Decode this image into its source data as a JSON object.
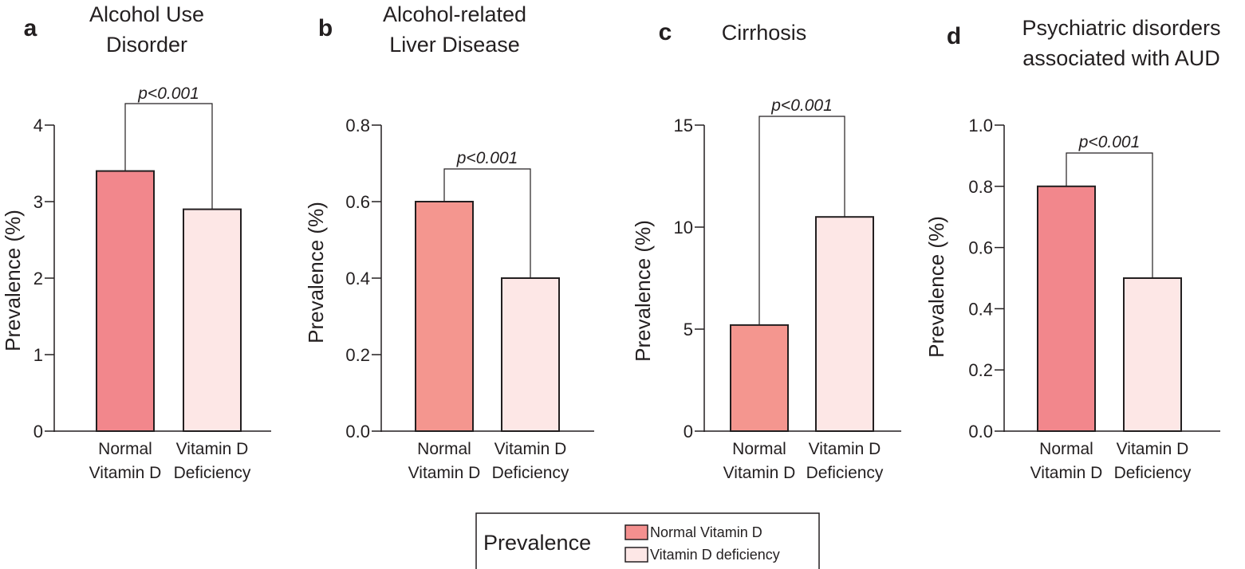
{
  "legend": {
    "title": "Prevalence",
    "items": [
      {
        "label": "Normal Vitamin D",
        "color": "#f4908f"
      },
      {
        "label": "Vitamin D deficiency",
        "color": "#fde7e6"
      }
    ]
  },
  "chart_data": [
    {
      "panel": "a",
      "type": "bar",
      "title": [
        "Alcohol Use",
        "Disorder"
      ],
      "ylabel": "Prevalence (%)",
      "ylim": [
        0,
        4
      ],
      "yticks": [
        "0",
        "1",
        "2",
        "3",
        "4"
      ],
      "categories": [
        [
          "Normal",
          "Vitamin D"
        ],
        [
          "Vitamin D",
          "Deficiency"
        ]
      ],
      "values": [
        3.4,
        2.9
      ],
      "colors": [
        "#f2878c",
        "#fde7e6"
      ],
      "significance": "p<0.001"
    },
    {
      "panel": "b",
      "type": "bar",
      "title": [
        "Alcohol-related",
        "Liver Disease"
      ],
      "ylabel": "Prevalence (%)",
      "ylim": [
        0,
        0.8
      ],
      "yticks": [
        "0.0",
        "0.2",
        "0.4",
        "0.6",
        "0.8"
      ],
      "categories": [
        [
          "Normal",
          "Vitamin D"
        ],
        [
          "Vitamin D",
          "Deficiency"
        ]
      ],
      "values": [
        0.6,
        0.4
      ],
      "colors": [
        "#f4968f",
        "#fde7e6"
      ],
      "significance": "p<0.001"
    },
    {
      "panel": "c",
      "type": "bar",
      "title": [
        "Cirrhosis"
      ],
      "ylabel": "Prevalence (%)",
      "ylim": [
        0,
        15
      ],
      "yticks": [
        "0",
        "5",
        "10",
        "15"
      ],
      "categories": [
        [
          "Normal",
          "Vitamin D"
        ],
        [
          "Vitamin D",
          "Deficiency"
        ]
      ],
      "values": [
        5.2,
        10.5
      ],
      "colors": [
        "#f4968f",
        "#fde7e6"
      ],
      "significance": "p<0.001"
    },
    {
      "panel": "d",
      "type": "bar",
      "title": [
        "Psychiatric disorders",
        "associated with AUD"
      ],
      "ylabel": "Prevalence (%)",
      "ylim": [
        0,
        1.0
      ],
      "yticks": [
        "0.0",
        "0.2",
        "0.4",
        "0.6",
        "0.8",
        "1.0"
      ],
      "categories": [
        [
          "Normal",
          "Vitamin D"
        ],
        [
          "Vitamin D",
          "Deficiency"
        ]
      ],
      "values": [
        0.8,
        0.5
      ],
      "colors": [
        "#f2878c",
        "#fde7e6"
      ],
      "significance": "p<0.001"
    }
  ]
}
